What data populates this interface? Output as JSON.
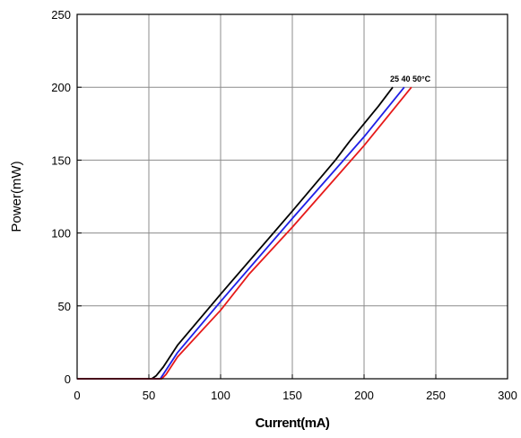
{
  "chart_data": {
    "type": "line",
    "title": "",
    "xlabel": "Current(mA)",
    "ylabel": "Power(mW)",
    "xlim": [
      0,
      300
    ],
    "ylim": [
      0,
      250
    ],
    "x_ticks": [
      "0",
      "50",
      "100",
      "150",
      "200",
      "250",
      "300"
    ],
    "y_ticks": [
      "0",
      "50",
      "100",
      "150",
      "200",
      "250"
    ],
    "grid": true,
    "legend": "none",
    "annotation": "25 40 50°C",
    "series": [
      {
        "color": "#000000",
        "points": [
          [
            0,
            0
          ],
          [
            52,
            0
          ],
          [
            55,
            2
          ],
          [
            60,
            8
          ],
          [
            70,
            23
          ],
          [
            100,
            58
          ],
          [
            150,
            115
          ],
          [
            180,
            150
          ],
          [
            190,
            163
          ],
          [
            200,
            175
          ],
          [
            210,
            187
          ],
          [
            220,
            200
          ]
        ]
      },
      {
        "color": "#1f1fe6",
        "points": [
          [
            0,
            0
          ],
          [
            58,
            0
          ],
          [
            60,
            3
          ],
          [
            70,
            18
          ],
          [
            100,
            53
          ],
          [
            150,
            110
          ],
          [
            200,
            166
          ],
          [
            228,
            200
          ]
        ]
      },
      {
        "color": "#e61a1a",
        "points": [
          [
            0,
            0
          ],
          [
            59,
            0
          ],
          [
            62,
            3
          ],
          [
            70,
            15
          ],
          [
            100,
            47
          ],
          [
            120,
            72
          ],
          [
            150,
            104
          ],
          [
            200,
            160
          ],
          [
            233,
            200
          ]
        ]
      }
    ]
  }
}
